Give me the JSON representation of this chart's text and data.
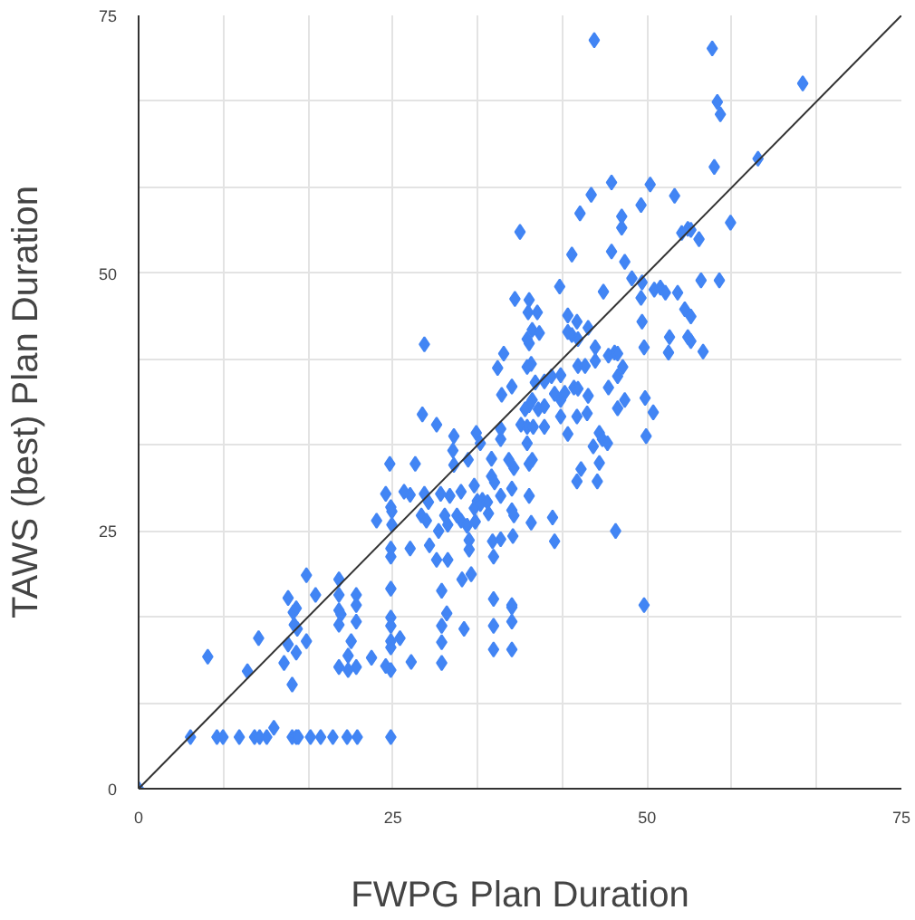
{
  "chart_data": {
    "type": "scatter",
    "xlabel": "FWPG Plan Duration",
    "ylabel": "TAWS (best) Plan Duration",
    "xlim": [
      0,
      75
    ],
    "ylim": [
      0,
      75
    ],
    "xticks": [
      0,
      {
        "value": 8.333,
        "label": null
      },
      {
        "value": 16.667,
        "label": null
      },
      25,
      {
        "value": 33.333,
        "label": null
      },
      {
        "value": 41.667,
        "label": null
      },
      50,
      {
        "value": 58.333,
        "label": null
      },
      {
        "value": 66.667,
        "label": null
      },
      75
    ],
    "yticks": [
      0,
      {
        "value": 8.333,
        "label": null
      },
      {
        "value": 16.667,
        "label": null
      },
      25,
      {
        "value": 33.333,
        "label": null
      },
      {
        "value": 41.667,
        "label": null
      },
      50,
      {
        "value": 58.333,
        "label": null
      },
      {
        "value": 66.667,
        "label": null
      },
      75
    ],
    "grid": true,
    "series": [
      {
        "color": "#4285f4",
        "marker": "diamond",
        "x": [
          0,
          5.1,
          7.7,
          8.3,
          9.9,
          11.4,
          11.9,
          12.6,
          15.1,
          15.5,
          15.7,
          16.9,
          17.9,
          19.1,
          20.5,
          21.5,
          24.8,
          13.3,
          6.8,
          11.8,
          10.7,
          14.7,
          16.5,
          17.4,
          15.2,
          15.5,
          15.3,
          15.6,
          14.7,
          16.5,
          15.5,
          14.3,
          15.1,
          19.7,
          19.7,
          19.7,
          19.9,
          21.4,
          21.4,
          21.4,
          19.7,
          20.9,
          20.6,
          19.7,
          20.6,
          21.4,
          22.9,
          24.3,
          24.8,
          24.8,
          24.8,
          24.8,
          24.8,
          24.8,
          25.7,
          26.8,
          29.8,
          30.3,
          29.8,
          29.8,
          29.8,
          32.0,
          31.8,
          32.7,
          34.9,
          34.9,
          34.9,
          34.9,
          36.7,
          36.7,
          36.7,
          24.8,
          24.8,
          26.7,
          28.6,
          29.3,
          30.4,
          32.5,
          32.5,
          34.8,
          35.6,
          28.1,
          37.0,
          38.4,
          38.3,
          39.2,
          41.4,
          45.7,
          38.7,
          39.4,
          38.2,
          38.4,
          42.2,
          43.1,
          44.2,
          42.2,
          42.6,
          43.2,
          44.9,
          46.2,
          46.8,
          35.9,
          35.3,
          38.6,
          38.2,
          43.2,
          43.9,
          44.9,
          47.1,
          40.6,
          41.5,
          39.0,
          39.9,
          36.7,
          35.7,
          40.9,
          41.9,
          42.8,
          43.2,
          44.2,
          46.2,
          47.8,
          38.7,
          38.4,
          38.0,
          39.3,
          39.9,
          41.5,
          47.1,
          27.9,
          29.3,
          37.6,
          38.2,
          38.8,
          39.9,
          41.5,
          43.1,
          44.1,
          35.6,
          33.2,
          31.0,
          33.6,
          35.6,
          38.2,
          42.2,
          45.3,
          45.6,
          46.1,
          44.7,
          30.9,
          32.4,
          34.7,
          36.4,
          36.9,
          38.7,
          38.4,
          31.0,
          24.7,
          27.2,
          45.3,
          43.5,
          43.1,
          45.1,
          34.7,
          35.0,
          33.0,
          36.7,
          38.4,
          35.6,
          33.3,
          33.8,
          31.7,
          29.7,
          30.6,
          28.1,
          28.5,
          26.1,
          26.7,
          24.3,
          24.8,
          24.9,
          27.8,
          28.3,
          23.4,
          24.9,
          30.1,
          31.3,
          31.7,
          33.0,
          33.6,
          34.3,
          34.4,
          30.4,
          32.3,
          33.1,
          36.7,
          36.9,
          38.6,
          40.7,
          46.9,
          29.5,
          36.8,
          40.9,
          57.2,
          56.6,
          60.9,
          46.5,
          50.3,
          44.5,
          52.7,
          49.4,
          43.4,
          47.5,
          47.5,
          37.5,
          58.2,
          53.4,
          54.0,
          54.3,
          55.1,
          42.6,
          46.5,
          47.8,
          48.5,
          49.5,
          50.7,
          51.3,
          51.8,
          53.0,
          55.3,
          57.1,
          49.4,
          53.7,
          54.3,
          49.5,
          52.2,
          54.0,
          54.3,
          49.7,
          52.1,
          55.5,
          47.6,
          47.1,
          49.8,
          50.6,
          49.9,
          49.7,
          36.7,
          56.4,
          65.3,
          56.9,
          44.8
        ],
        "values": [
          0,
          5,
          5,
          5,
          5,
          5,
          5,
          5,
          5,
          5,
          5,
          5,
          5,
          5,
          5,
          5,
          5,
          5.9,
          12.8,
          14.6,
          11.4,
          18.5,
          20.7,
          18.8,
          17.1,
          17.5,
          15.9,
          15.5,
          14.0,
          14.3,
          13.2,
          12.2,
          10.1,
          20.3,
          18.8,
          17.3,
          16.9,
          18.8,
          17.8,
          16.2,
          15.9,
          14.3,
          12.9,
          11.8,
          11.5,
          11.8,
          12.7,
          11.9,
          11.5,
          19.4,
          16.6,
          15.8,
          14.3,
          13.7,
          14.6,
          12.3,
          19.2,
          17.0,
          15.8,
          14.2,
          12.2,
          15.5,
          20.3,
          20.8,
          22.5,
          18.4,
          15.8,
          13.5,
          17.6,
          16.2,
          13.5,
          23.3,
          22.5,
          23.3,
          23.6,
          22.2,
          22.2,
          24.1,
          23.2,
          24.0,
          24.2,
          43.1,
          47.5,
          47.4,
          46.2,
          46.2,
          48.7,
          48.2,
          44.5,
          44.2,
          43.6,
          43.2,
          45.9,
          45.3,
          44.7,
          44.3,
          44.0,
          43.6,
          42.8,
          42.0,
          42.3,
          42.2,
          40.8,
          41.2,
          40.9,
          41.0,
          41.0,
          41.5,
          40.0,
          40.0,
          40.1,
          39.4,
          39.5,
          39.0,
          38.2,
          38.3,
          38.4,
          38.9,
          38.8,
          38.1,
          38.9,
          37.7,
          37.7,
          37.2,
          36.8,
          36.8,
          37.1,
          37.7,
          36.9,
          36.3,
          35.3,
          35.3,
          35.1,
          35.1,
          35.1,
          36.1,
          36.1,
          36.4,
          34.9,
          34.5,
          34.2,
          33.5,
          33.9,
          33.5,
          34.4,
          34.5,
          33.9,
          33.5,
          33.2,
          32.8,
          31.9,
          32.0,
          31.9,
          31.1,
          31.9,
          31.5,
          31.4,
          31.5,
          31.5,
          31.6,
          31.0,
          29.8,
          29.8,
          30.3,
          29.7,
          29.4,
          29.1,
          28.4,
          28.4,
          27.9,
          28.0,
          28.8,
          28.6,
          28.4,
          28.6,
          27.8,
          28.8,
          28.5,
          28.6,
          27.3,
          26.9,
          26.5,
          26.0,
          26.0,
          25.6,
          26.5,
          26.5,
          26.0,
          27.2,
          27.6,
          27.8,
          26.7,
          25.6,
          25.5,
          25.9,
          27.0,
          26.5,
          25.8,
          26.3,
          25.0,
          25.0,
          24.5,
          24.0,
          65.4,
          60.3,
          61.1,
          58.8,
          58.6,
          57.6,
          57.5,
          56.6,
          55.8,
          55.5,
          54.4,
          54.0,
          54.9,
          53.9,
          54.3,
          54.2,
          53.3,
          51.8,
          52.1,
          51.1,
          49.5,
          49.1,
          48.4,
          48.6,
          48.1,
          48.1,
          49.3,
          49.3,
          47.6,
          46.5,
          45.8,
          45.3,
          43.8,
          43.8,
          43.4,
          42.8,
          42.3,
          42.4,
          40.9,
          42.2,
          37.9,
          36.5,
          34.2,
          17.8,
          17.8,
          71.8,
          68.4,
          66.6,
          72.6
        ]
      },
      {
        "type": "line",
        "color": "#333333",
        "x": [
          0,
          75
        ],
        "values": [
          0,
          75
        ]
      }
    ]
  }
}
